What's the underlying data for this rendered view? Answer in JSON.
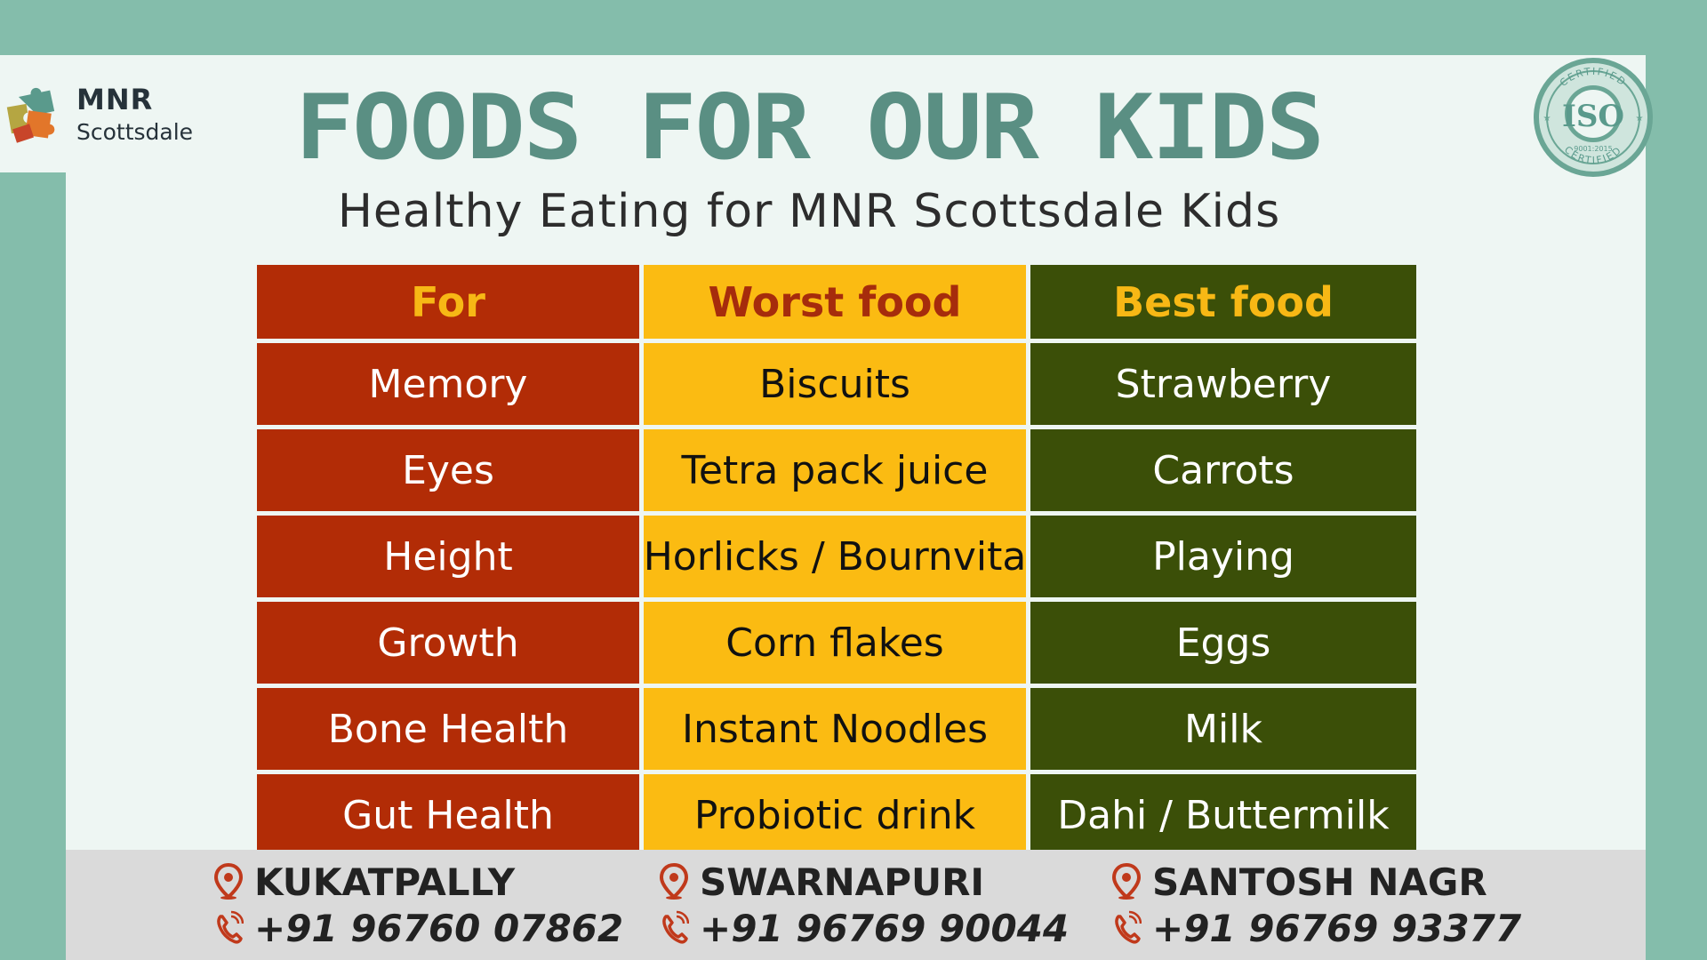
{
  "brand": {
    "name": "MNR",
    "sub": "Scottsdale"
  },
  "title": "FOODS FOR OUR KIDS",
  "subtitle": "Healthy Eating for MNR Scottsdale Kids",
  "badge": {
    "top_text": "CERTIFIED",
    "center_text": "ISO",
    "number_text": "9001:2015",
    "bottom_text": "CERTIFIED"
  },
  "table": {
    "headers": [
      "For",
      "Worst food",
      "Best food"
    ],
    "rows": [
      [
        "Memory",
        "Biscuits",
        "Strawberry"
      ],
      [
        "Eyes",
        "Tetra pack juice",
        "Carrots"
      ],
      [
        "Height",
        "Horlicks / Bournvita",
        "Playing"
      ],
      [
        "Growth",
        "Corn flakes",
        "Eggs"
      ],
      [
        "Bone Health",
        "Instant Noodles",
        "Milk"
      ],
      [
        "Gut Health",
        "Probiotic drink",
        "Dahi / Buttermilk"
      ]
    ]
  },
  "locations": [
    {
      "name": "KUKATPALLY",
      "phone": "+91 96760 07862"
    },
    {
      "name": "SWARNAPURI",
      "phone": "+91 96769 90044"
    },
    {
      "name": "SANTOSH NAGR",
      "phone": "+91 96769 93377"
    }
  ],
  "colors": {
    "background": "#84bdab",
    "panel": "#eef6f3",
    "title": "#5a8f83",
    "for_column": "#b22c06",
    "worst_column": "#fbbb12",
    "best_column": "#3b4f08",
    "header_text_gold": "#f7b815",
    "header_text_red": "#a62c0c",
    "footer": "#dadada",
    "icon": "#c0391b"
  },
  "icons": {
    "location": "location-pin-icon",
    "phone": "phone-icon",
    "logo": "puzzle-logo-icon",
    "badge": "iso-badge-icon"
  }
}
